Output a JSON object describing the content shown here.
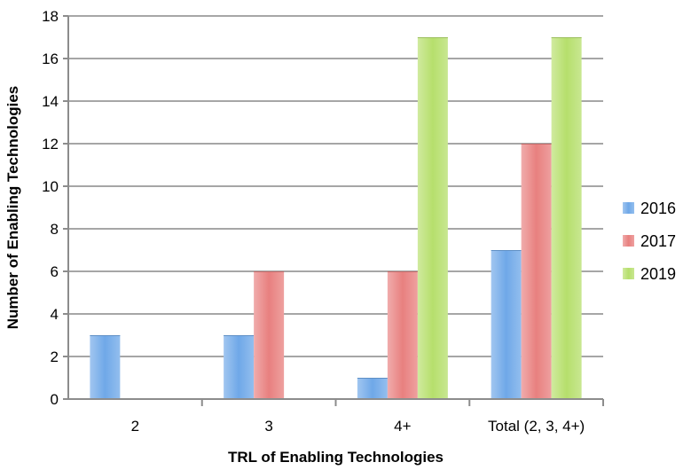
{
  "chart_data": {
    "type": "bar",
    "title": "",
    "xlabel": "TRL of Enabling Technologies",
    "ylabel": "Number of Enabling Technologies",
    "categories": [
      "2",
      "3",
      "4+",
      "Total (2, 3, 4+)"
    ],
    "series": [
      {
        "name": "2016",
        "values": [
          3,
          3,
          1,
          7
        ],
        "color": "#6fa8e8"
      },
      {
        "name": "2017",
        "values": [
          0,
          6,
          6,
          12
        ],
        "color": "#e8807f"
      },
      {
        "name": "2019",
        "values": [
          0,
          0,
          17,
          17
        ],
        "color": "#b6df6c"
      }
    ],
    "ylim": [
      0,
      18
    ],
    "yticks": [
      0,
      2,
      4,
      6,
      8,
      10,
      12,
      14,
      16,
      18
    ],
    "grid": true,
    "legend_position": "right"
  }
}
